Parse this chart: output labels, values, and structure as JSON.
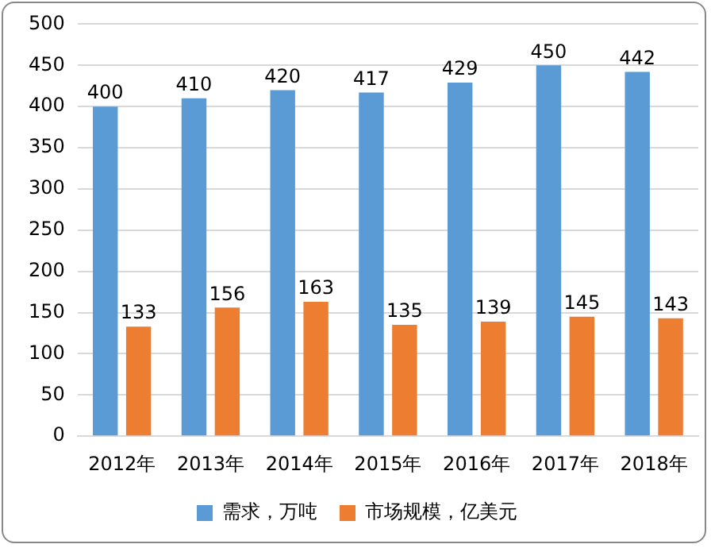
{
  "chart_data": {
    "type": "bar",
    "categories": [
      "2012年",
      "2013年",
      "2014年",
      "2015年",
      "2016年",
      "2017年",
      "2018年"
    ],
    "series": [
      {
        "name": "需求，万吨",
        "color": "#5b9bd5",
        "values": [
          400,
          410,
          420,
          417,
          429,
          450,
          442
        ]
      },
      {
        "name": "市场规模，亿美元",
        "color": "#ed7d31",
        "values": [
          133,
          156,
          163,
          135,
          139,
          145,
          143
        ]
      }
    ],
    "ylim": [
      0,
      500
    ],
    "yticks": [
      0,
      50,
      100,
      150,
      200,
      250,
      300,
      350,
      400,
      450,
      500
    ],
    "grid": "y",
    "legend": "bottom",
    "data_labels": true
  }
}
